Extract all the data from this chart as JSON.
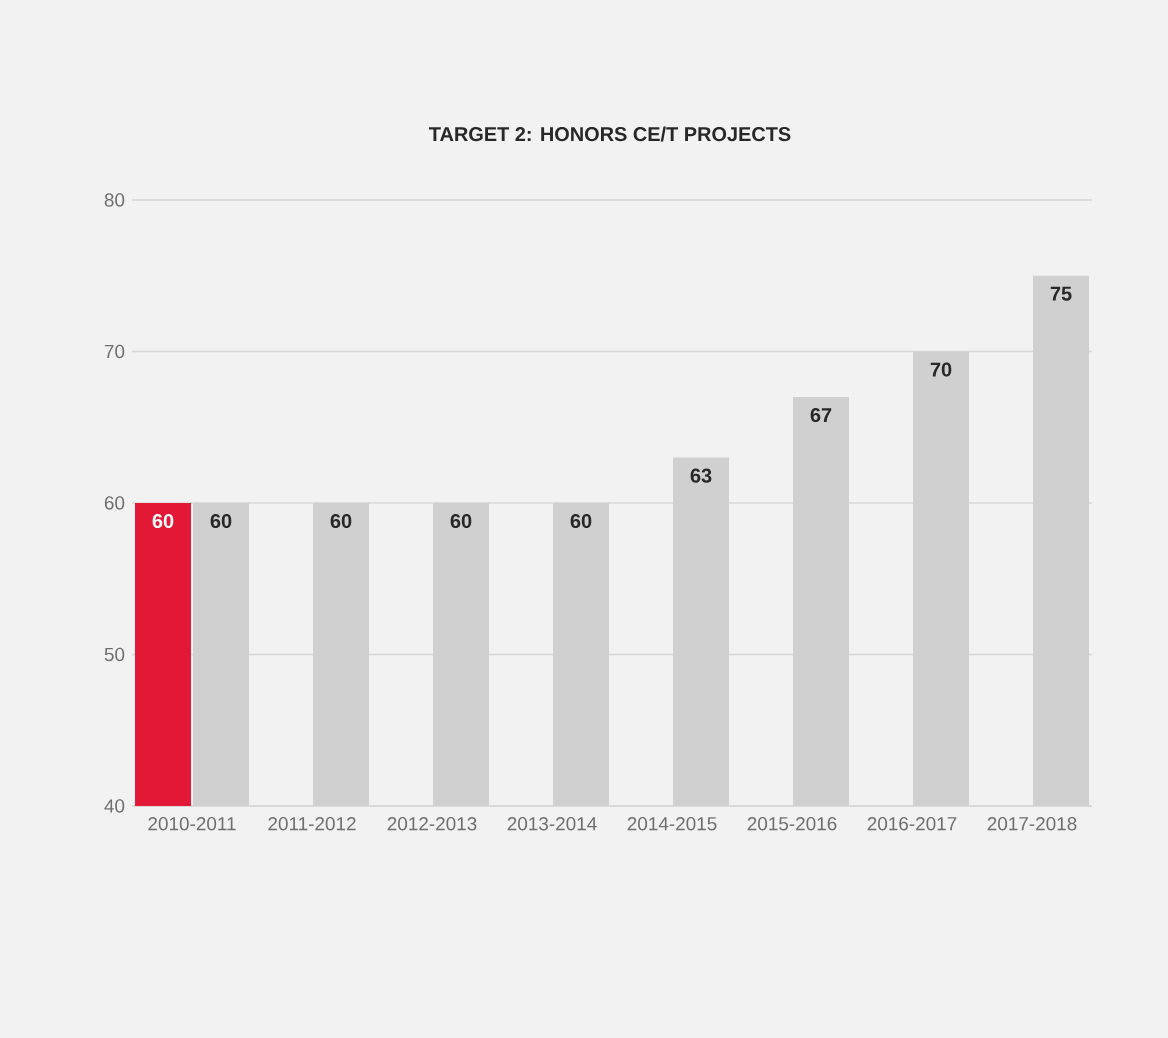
{
  "chart_data": {
    "type": "bar",
    "title": "TARGET 2:  HONORS CE/T PROJECTS",
    "categories": [
      "2010-2011",
      "2011-2012",
      "2012-2013",
      "2013-2014",
      "2014-2015",
      "2015-2016",
      "2016-2017",
      "2017-2018"
    ],
    "series": [
      {
        "color": "#e31837",
        "values": [
          60,
          null,
          null,
          null,
          null,
          null,
          null,
          null
        ]
      },
      {
        "color": "#d0d0d0",
        "values": [
          60,
          60,
          60,
          60,
          63,
          67,
          70,
          75
        ]
      }
    ],
    "ylim": [
      40,
      80
    ],
    "yticks": [
      40,
      50,
      60,
      70,
      80
    ],
    "grid": "y",
    "data_labels": true
  }
}
